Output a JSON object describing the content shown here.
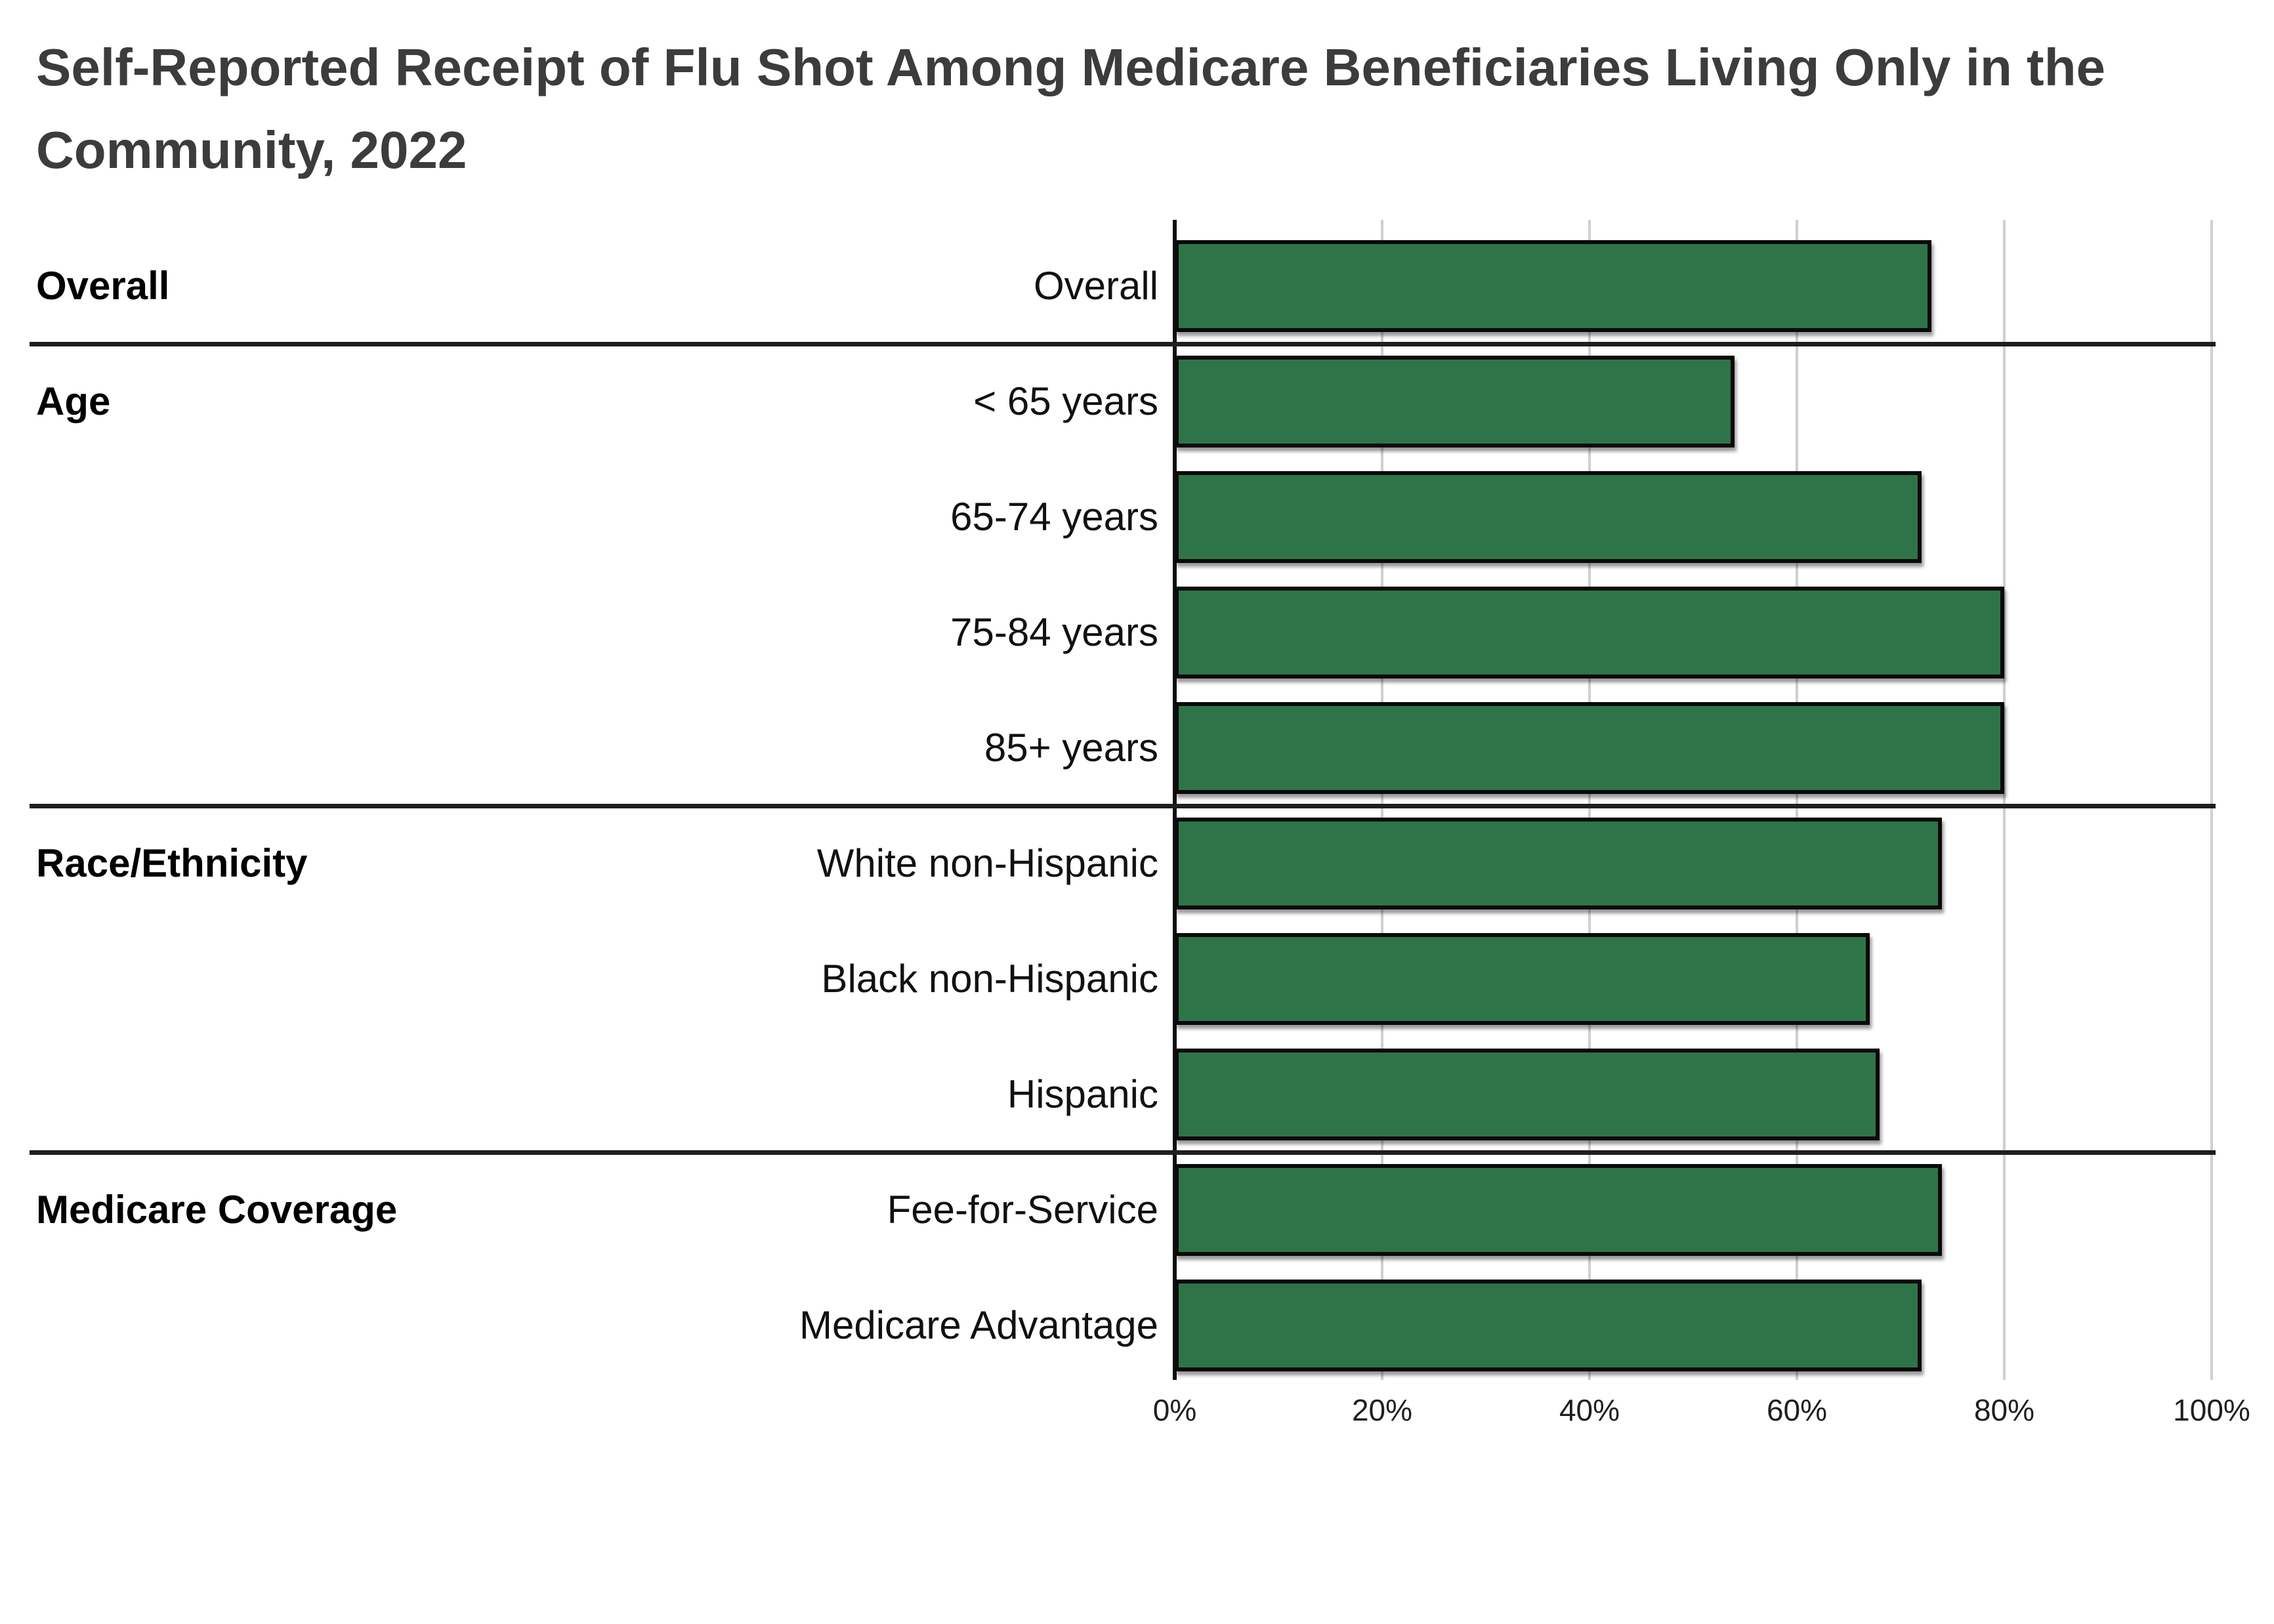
{
  "title": "Self-Reported Receipt of Flu Shot Among Medicare Beneficiaries Living Only in the Community, 2022",
  "chart_data": {
    "type": "bar",
    "orientation": "horizontal",
    "title": "Self-Reported Receipt of Flu Shot Among Medicare Beneficiaries Living Only in the Community, 2022",
    "xlabel": "",
    "ylabel": "",
    "x_axis": {
      "min": 0,
      "max": 100,
      "tick_labels": [
        "0%",
        "20%",
        "40%",
        "60%",
        "80%",
        "100%"
      ],
      "grid": true
    },
    "bar_color": "#2F7449",
    "bar_border_color": "#0a0a0a",
    "gridline_color": "#cfcfcf",
    "separator_color": "#1e1e1e",
    "groups": [
      {
        "label": "Overall",
        "rows": [
          {
            "label": "Overall",
            "value": 73
          }
        ]
      },
      {
        "label": "Age",
        "rows": [
          {
            "label": "< 65 years",
            "value": 54
          },
          {
            "label": "65-74 years",
            "value": 72
          },
          {
            "label": "75-84 years",
            "value": 80
          },
          {
            "label": "85+ years",
            "value": 80
          }
        ]
      },
      {
        "label": "Race/Ethnicity",
        "rows": [
          {
            "label": "White non-Hispanic",
            "value": 74
          },
          {
            "label": "Black non-Hispanic",
            "value": 67
          },
          {
            "label": "Hispanic",
            "value": 68
          }
        ]
      },
      {
        "label": "Medicare Coverage",
        "rows": [
          {
            "label": "Fee-for-Service",
            "value": 74
          },
          {
            "label": "Medicare Advantage",
            "value": 72
          }
        ]
      }
    ]
  }
}
